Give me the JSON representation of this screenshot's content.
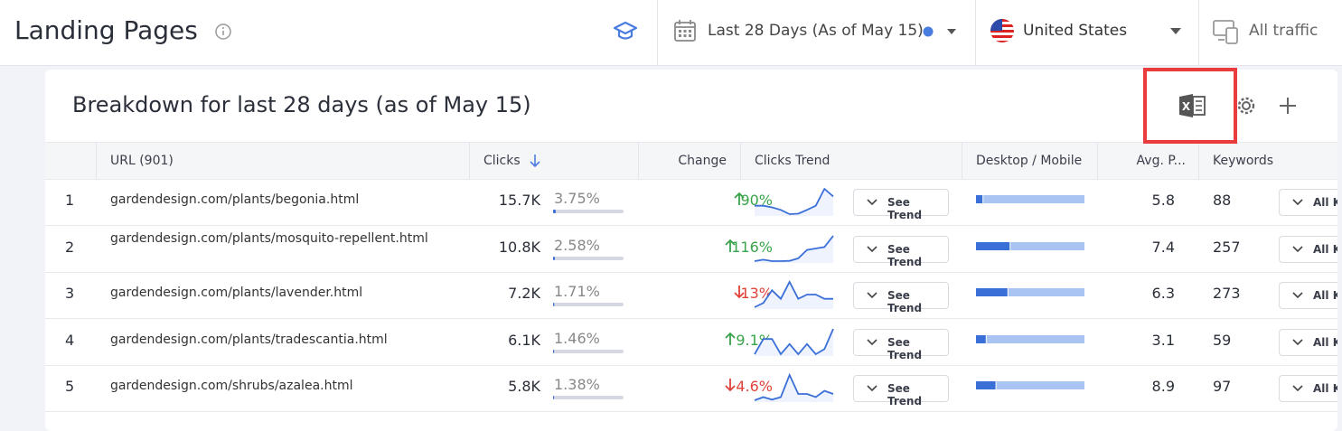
{
  "header": {
    "title": "Landing Pages",
    "date_range": "Last 28 Days (As of May 15)",
    "country": "United States",
    "traffic": "All traffic"
  },
  "panel": {
    "title": "Breakdown for last 28 days (as of May 15)"
  },
  "table": {
    "columns": [
      "URL (901)",
      "Clicks",
      "Change",
      "Clicks Trend",
      "Desktop / Mobile",
      "Avg. P...",
      "Keywords"
    ],
    "rows": [
      {
        "rank": "1",
        "url": "gardendesign.com/plants/begonia.html",
        "clicks": "15.7K",
        "share": {
          "value": 3.75,
          "label": "3.75%"
        },
        "change": {
          "value": 90,
          "label": "90%"
        },
        "direction": "up",
        "trend": [
          5,
          5,
          4.6,
          4,
          3,
          3.1,
          4,
          5,
          9,
          7.2
        ],
        "trend_button": "See Trend",
        "desktop_share": 6,
        "avg_position": "5.8",
        "keywords": "88",
        "keywords_button": "All K"
      },
      {
        "rank": "2",
        "url": "gardendesign.com/plants/mosquito-repellent.html",
        "clicks": "10.8K",
        "share": {
          "value": 2.58,
          "label": "2.58%"
        },
        "change": {
          "value": 116,
          "label": "116%"
        },
        "direction": "up",
        "trend": [
          2,
          2.5,
          2,
          2,
          2.1,
          3,
          6,
          6.5,
          7,
          11
        ],
        "trend_button": "See Trend",
        "desktop_share": 31,
        "avg_position": "7.4",
        "keywords": "257",
        "keywords_button": "All K"
      },
      {
        "rank": "3",
        "url": "gardendesign.com/plants/lavender.html",
        "clicks": "7.2K",
        "share": {
          "value": 1.71,
          "label": "1.71%"
        },
        "change": {
          "value": 13,
          "label": "13%"
        },
        "direction": "down",
        "trend": [
          2,
          3,
          6,
          4,
          8,
          4,
          5,
          5,
          4,
          4
        ],
        "trend_button": "See Trend",
        "desktop_share": 29,
        "avg_position": "6.3",
        "keywords": "273",
        "keywords_button": "All K"
      },
      {
        "rank": "4",
        "url": "gardendesign.com/plants/tradescantia.html",
        "clicks": "6.1K",
        "share": {
          "value": 1.46,
          "label": "1.46%"
        },
        "change": {
          "value": 9.1,
          "label": "9.1%"
        },
        "direction": "up",
        "trend": [
          3,
          6,
          6,
          3,
          5,
          3,
          5,
          3,
          4,
          8
        ],
        "trend_button": "See Trend",
        "desktop_share": 9,
        "avg_position": "3.1",
        "keywords": "59",
        "keywords_button": "All K"
      },
      {
        "rank": "5",
        "url": "gardendesign.com/shrubs/azalea.html",
        "clicks": "5.8K",
        "share": {
          "value": 1.38,
          "label": "1.38%"
        },
        "change": {
          "value": 4.6,
          "label": "4.6%"
        },
        "direction": "down",
        "trend": [
          1,
          2,
          1.2,
          2,
          9,
          3,
          3,
          2,
          4,
          3
        ],
        "trend_button": "See Trend",
        "desktop_share": 18,
        "avg_position": "8.9",
        "keywords": "97",
        "keywords_button": "All K"
      }
    ]
  }
}
